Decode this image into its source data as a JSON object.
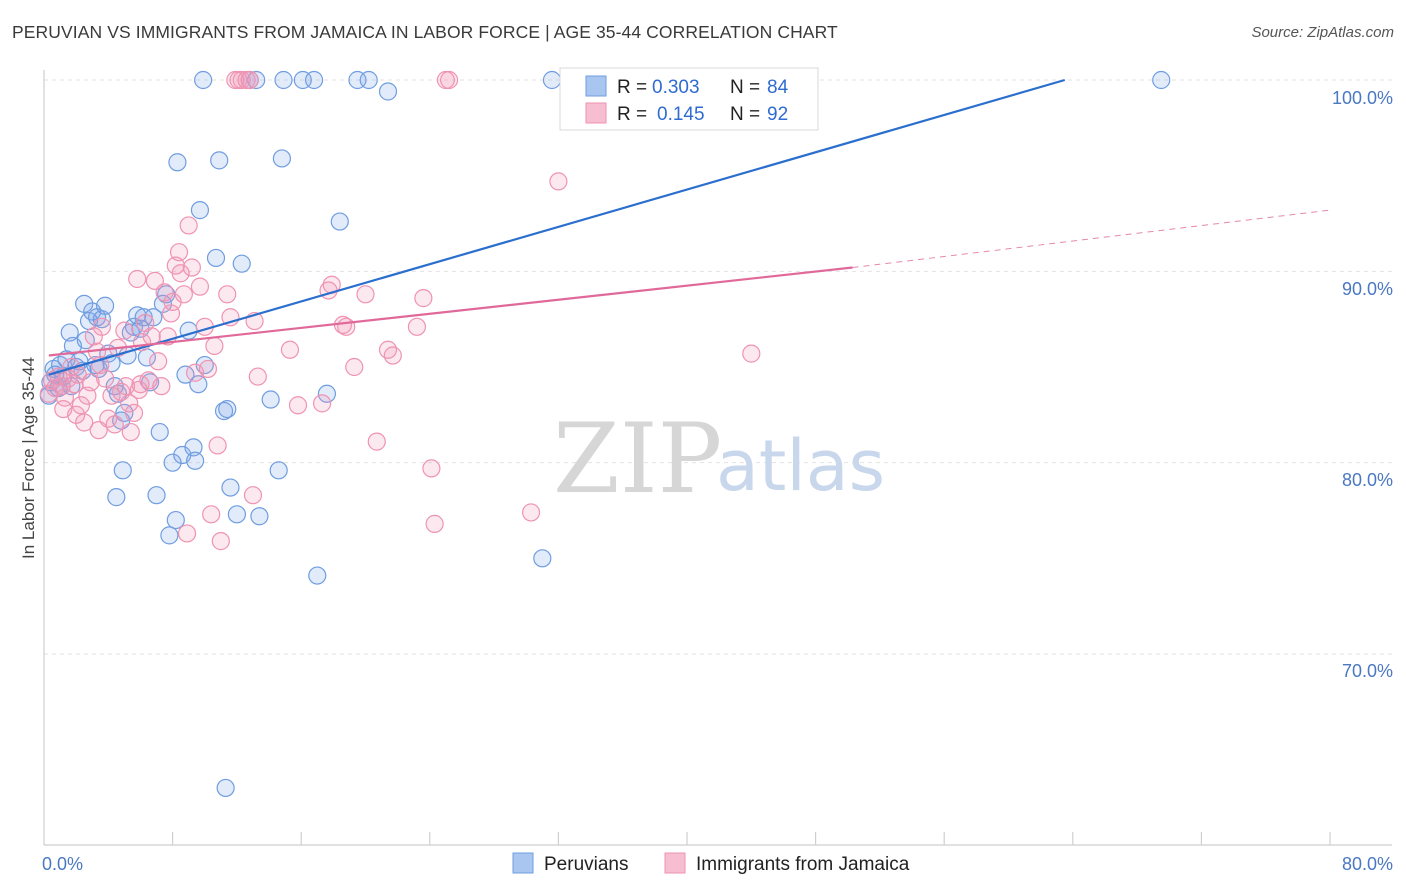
{
  "title": "PERUVIAN VS IMMIGRANTS FROM JAMAICA IN LABOR FORCE | AGE 35-44 CORRELATION CHART",
  "source": "Source: ZipAtlas.com",
  "watermark": {
    "zip": "ZIP",
    "atlas": "atlas"
  },
  "legend": {
    "r_label": "R = ",
    "n_label": "N = ",
    "series": [
      {
        "r": "0.303",
        "n": "84"
      },
      {
        "r": "0.145",
        "n": "92"
      }
    ]
  },
  "chart_data": {
    "type": "scatter",
    "title": "PERUVIAN VS IMMIGRANTS FROM JAMAICA IN LABOR FORCE | AGE 35-44 CORRELATION CHART",
    "xlabel": "",
    "ylabel": "In Labor Force | Age 35-44",
    "xlim": [
      0,
      80
    ],
    "ylim": [
      61.5,
      101.5
    ],
    "x_tick_labels": [
      "0.0%",
      "80.0%"
    ],
    "y_ticks": [
      70,
      80,
      90,
      100
    ],
    "y_tick_labels": [
      "70.0%",
      "80.0%",
      "90.0%",
      "100.0%"
    ],
    "grid": true,
    "legend_position": "top-center",
    "series": [
      {
        "name": "Peruvians",
        "color": "#6f9de0",
        "trend": {
          "x": [
            0.3,
            63.5
          ],
          "y": [
            84.6,
            100.0
          ],
          "color": "#2b6fce"
        },
        "points": [
          [
            0.4,
            84.2
          ],
          [
            0.6,
            84.9
          ],
          [
            0.9,
            83.9
          ],
          [
            1.0,
            85.1
          ],
          [
            1.2,
            84.5
          ],
          [
            1.4,
            85.4
          ],
          [
            1.6,
            86.8
          ],
          [
            1.7,
            84.0
          ],
          [
            1.8,
            86.1
          ],
          [
            2.0,
            85.0
          ],
          [
            2.2,
            85.3
          ],
          [
            2.4,
            84.8
          ],
          [
            2.6,
            86.4
          ],
          [
            2.8,
            87.4
          ],
          [
            2.5,
            88.3
          ],
          [
            3.0,
            87.9
          ],
          [
            3.2,
            85.1
          ],
          [
            3.4,
            84.9
          ],
          [
            3.3,
            87.6
          ],
          [
            3.6,
            87.5
          ],
          [
            3.8,
            88.2
          ],
          [
            4.0,
            85.7
          ],
          [
            4.2,
            85.2
          ],
          [
            4.4,
            84.0
          ],
          [
            4.6,
            83.6
          ],
          [
            4.8,
            82.2
          ],
          [
            4.9,
            79.6
          ],
          [
            4.5,
            78.2
          ],
          [
            5.0,
            82.6
          ],
          [
            5.2,
            85.6
          ],
          [
            5.4,
            86.8
          ],
          [
            5.6,
            87.1
          ],
          [
            5.8,
            87.7
          ],
          [
            6.0,
            87.0
          ],
          [
            6.2,
            87.6
          ],
          [
            6.4,
            85.5
          ],
          [
            6.6,
            84.2
          ],
          [
            6.8,
            87.6
          ],
          [
            7.0,
            78.3
          ],
          [
            7.2,
            81.6
          ],
          [
            7.4,
            88.3
          ],
          [
            7.6,
            88.8
          ],
          [
            7.8,
            76.2
          ],
          [
            8.0,
            80.0
          ],
          [
            8.3,
            95.7
          ],
          [
            8.2,
            77.0
          ],
          [
            8.8,
            84.6
          ],
          [
            8.6,
            80.4
          ],
          [
            9.0,
            86.9
          ],
          [
            9.3,
            80.8
          ],
          [
            9.6,
            84.1
          ],
          [
            9.4,
            80.1
          ],
          [
            9.7,
            93.2
          ],
          [
            10.0,
            85.1
          ],
          [
            9.9,
            100.0
          ],
          [
            10.9,
            95.8
          ],
          [
            10.7,
            90.7
          ],
          [
            11.2,
            82.7
          ],
          [
            11.4,
            82.8
          ],
          [
            11.6,
            78.7
          ],
          [
            12.0,
            77.3
          ],
          [
            12.3,
            90.4
          ],
          [
            12.8,
            100.0
          ],
          [
            13.2,
            100.0
          ],
          [
            13.4,
            77.2
          ],
          [
            14.1,
            83.3
          ],
          [
            14.8,
            95.9
          ],
          [
            14.6,
            79.6
          ],
          [
            14.9,
            100.0
          ],
          [
            16.1,
            100.0
          ],
          [
            16.8,
            100.0
          ],
          [
            17.0,
            74.1
          ],
          [
            17.6,
            83.6
          ],
          [
            18.4,
            92.6
          ],
          [
            19.5,
            100.0
          ],
          [
            20.2,
            100.0
          ],
          [
            21.4,
            99.4
          ],
          [
            31.6,
            100.0
          ],
          [
            31.0,
            75.0
          ],
          [
            69.5,
            100.0
          ],
          [
            11.3,
            63.0
          ],
          [
            0.3,
            83.5
          ],
          [
            0.7,
            84.6
          ],
          [
            1.1,
            84.0
          ]
        ]
      },
      {
        "name": "Immigrants from Jamaica",
        "color": "#ef93b2",
        "trend": {
          "x": [
            0.3,
            50.3
          ],
          "y": [
            85.6,
            90.2
          ],
          "color": "#e0699a"
        },
        "trend_ext": {
          "x": [
            50.3,
            80.0
          ],
          "y": [
            90.2,
            93.2
          ]
        },
        "points": [
          [
            0.3,
            83.6
          ],
          [
            0.5,
            84.3
          ],
          [
            0.7,
            83.9
          ],
          [
            0.9,
            84.5
          ],
          [
            1.1,
            84.0
          ],
          [
            1.3,
            83.4
          ],
          [
            1.5,
            84.4
          ],
          [
            1.7,
            85.0
          ],
          [
            1.9,
            84.1
          ],
          [
            2.1,
            84.6
          ],
          [
            2.3,
            83.0
          ],
          [
            2.5,
            82.1
          ],
          [
            2.7,
            83.5
          ],
          [
            2.9,
            84.2
          ],
          [
            3.1,
            86.6
          ],
          [
            3.3,
            85.8
          ],
          [
            3.5,
            85.1
          ],
          [
            3.6,
            87.1
          ],
          [
            3.8,
            84.4
          ],
          [
            4.0,
            82.3
          ],
          [
            4.2,
            83.5
          ],
          [
            4.4,
            82.0
          ],
          [
            4.6,
            86.0
          ],
          [
            4.8,
            83.7
          ],
          [
            5.0,
            86.9
          ],
          [
            5.1,
            84.0
          ],
          [
            5.3,
            83.1
          ],
          [
            5.4,
            81.6
          ],
          [
            5.6,
            82.6
          ],
          [
            5.8,
            89.6
          ],
          [
            5.9,
            83.8
          ],
          [
            6.1,
            86.3
          ],
          [
            6.3,
            87.3
          ],
          [
            6.5,
            84.3
          ],
          [
            6.7,
            86.6
          ],
          [
            6.9,
            89.5
          ],
          [
            7.1,
            85.3
          ],
          [
            7.3,
            84.0
          ],
          [
            7.5,
            88.9
          ],
          [
            7.7,
            86.6
          ],
          [
            7.9,
            87.8
          ],
          [
            8.0,
            88.4
          ],
          [
            8.2,
            90.3
          ],
          [
            8.4,
            91.0
          ],
          [
            8.5,
            89.9
          ],
          [
            8.7,
            88.8
          ],
          [
            9.0,
            92.4
          ],
          [
            9.2,
            90.2
          ],
          [
            9.4,
            84.7
          ],
          [
            9.7,
            89.2
          ],
          [
            10.0,
            87.1
          ],
          [
            10.2,
            84.9
          ],
          [
            10.4,
            77.3
          ],
          [
            10.6,
            86.1
          ],
          [
            10.8,
            80.9
          ],
          [
            11.0,
            75.9
          ],
          [
            11.4,
            88.8
          ],
          [
            11.6,
            87.6
          ],
          [
            11.9,
            100.0
          ],
          [
            12.1,
            100.0
          ],
          [
            12.3,
            100.0
          ],
          [
            12.6,
            100.0
          ],
          [
            12.8,
            100.0
          ],
          [
            13.1,
            87.4
          ],
          [
            13.3,
            84.5
          ],
          [
            13.0,
            78.3
          ],
          [
            15.3,
            85.9
          ],
          [
            15.8,
            83.0
          ],
          [
            17.3,
            83.1
          ],
          [
            17.7,
            89.0
          ],
          [
            17.9,
            89.3
          ],
          [
            18.6,
            87.2
          ],
          [
            18.8,
            87.1
          ],
          [
            19.3,
            85.0
          ],
          [
            20.0,
            88.8
          ],
          [
            20.7,
            81.1
          ],
          [
            21.4,
            85.9
          ],
          [
            21.7,
            85.6
          ],
          [
            23.2,
            87.1
          ],
          [
            23.6,
            88.6
          ],
          [
            24.1,
            79.7
          ],
          [
            24.3,
            76.8
          ],
          [
            25.0,
            100.0
          ],
          [
            25.2,
            100.0
          ],
          [
            32.0,
            94.7
          ],
          [
            30.3,
            77.4
          ],
          [
            44.0,
            85.7
          ],
          [
            3.4,
            81.7
          ],
          [
            2.0,
            82.5
          ],
          [
            6.0,
            84.1
          ],
          [
            8.9,
            76.3
          ],
          [
            1.2,
            82.8
          ]
        ]
      }
    ]
  }
}
